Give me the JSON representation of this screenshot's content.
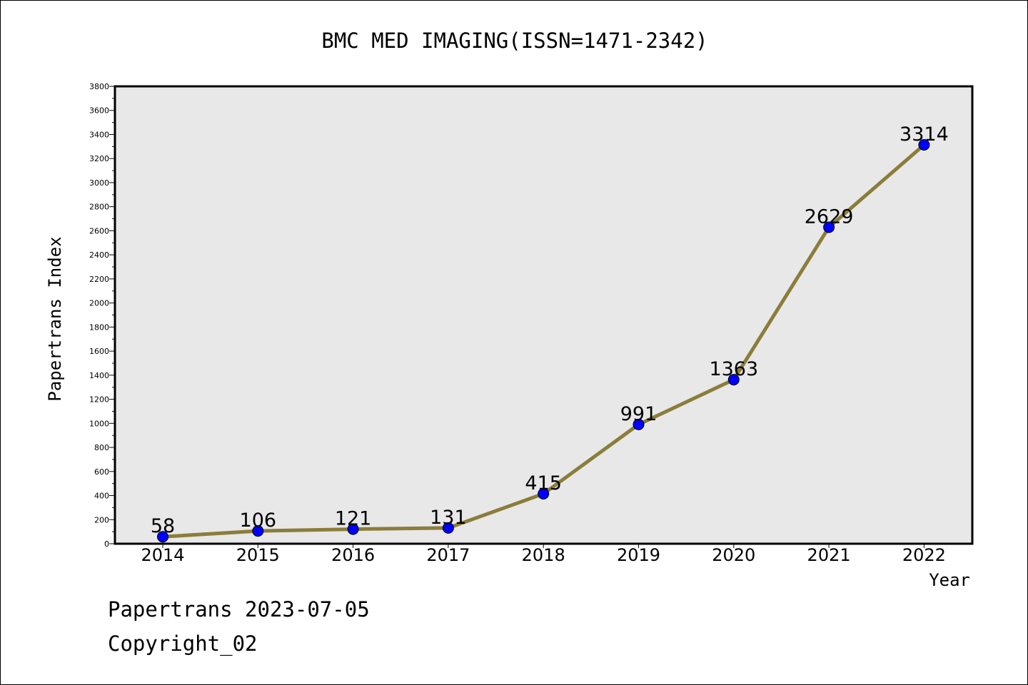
{
  "chart_data": {
    "type": "line",
    "title": "BMC MED IMAGING(ISSN=1471-2342)",
    "xlabel": "Year",
    "ylabel": "Papertrans Index",
    "categories": [
      "2014",
      "2015",
      "2016",
      "2017",
      "2018",
      "2019",
      "2020",
      "2021",
      "2022"
    ],
    "values": [
      58,
      106,
      121,
      131,
      415,
      991,
      1363,
      2629,
      3314
    ],
    "data_labels": [
      "58",
      "106",
      "121",
      "131",
      "415",
      "991",
      "1363",
      "2629",
      "3314"
    ],
    "ylim": [
      0,
      3800
    ],
    "yticks": [
      "0",
      "200",
      "400",
      "600",
      "800",
      "1000",
      "1200",
      "1400",
      "1600",
      "1800",
      "2000",
      "2200",
      "2400",
      "2600",
      "2800",
      "3000",
      "3200",
      "3400",
      "3600",
      "3800"
    ],
    "grid": false,
    "legend": "none",
    "colors": {
      "line": "#8B7D3A",
      "marker": "#0000FF",
      "plot_background": "#E8E8E8"
    }
  },
  "footer": {
    "date_text": "Papertrans 2023-07-05",
    "copyright_text": "Copyright_02"
  }
}
